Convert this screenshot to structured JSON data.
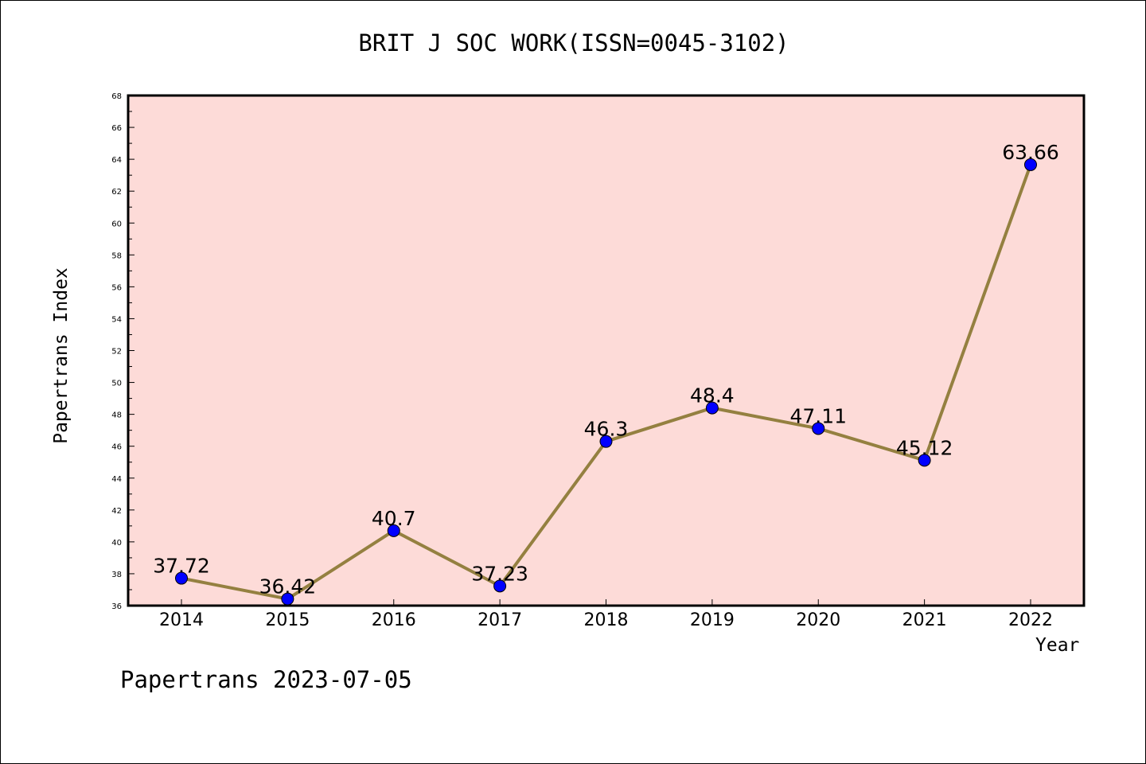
{
  "chart_data": {
    "type": "line",
    "title": "BRIT J SOC WORK(ISSN=0045-3102)",
    "xlabel": "Year",
    "ylabel": "Papertrans Index",
    "categories": [
      "2014",
      "2015",
      "2016",
      "2017",
      "2018",
      "2019",
      "2020",
      "2021",
      "2022"
    ],
    "series": [
      {
        "values": [
          37.72,
          36.42,
          40.7,
          37.23,
          46.3,
          48.4,
          47.11,
          45.12,
          63.66
        ],
        "labels": [
          "37.72",
          "36.42",
          "40.7",
          "37.23",
          "46.3",
          "48.4",
          "47.11",
          "45.12",
          "63.66"
        ]
      }
    ],
    "yticks": [
      "36",
      "38",
      "40",
      "42",
      "44",
      "46",
      "48",
      "50",
      "52",
      "54",
      "56",
      "58",
      "60",
      "62",
      "64",
      "66",
      "68"
    ],
    "ylim": [
      36,
      68
    ],
    "grid": false,
    "colors": {
      "plot_background": "#fddbd8",
      "line": "#948040",
      "marker": "#0000ff"
    }
  },
  "footer": "Papertrans 2023-07-05"
}
